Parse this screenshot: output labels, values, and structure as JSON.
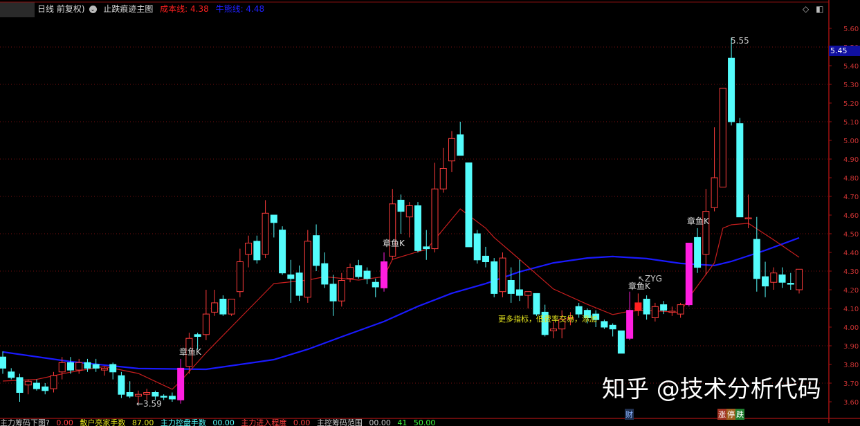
{
  "header": {
    "period": "日线 前复权)",
    "indicator_name": "止跌痕迹主图",
    "cost_line_label": "成本线: 4.38",
    "bull_bear_label": "牛熊线: 4.48",
    "icons": [
      "chevron-down-icon",
      "diamond-icon",
      "panel-toggle-icon"
    ]
  },
  "colors": {
    "up": "#ff3c3c",
    "down": "#54fcfc",
    "special": "#ff1ee0",
    "cost_line": "#c81e1e",
    "bull_bear_line": "#1a1aff",
    "grid": "#7a1010",
    "axis_text": "#c83232"
  },
  "last_price_tag": "5.45",
  "annotations": {
    "low_marker": "←3.59",
    "high_marker": "5.55",
    "zyg": "↖ZYG",
    "octopus_k": "章鱼K",
    "promo": "更多指标，低费率交易，添加"
  },
  "bottom_bar": {
    "items": [
      "主力筹码下图?",
      "0.00",
      "散户亮家手数",
      "87.00",
      "主力控盘手数",
      "00.00",
      "主力进入程度",
      "0.00",
      "主控筹码范围",
      "00.00",
      "41",
      "50.00"
    ],
    "badge_cai": "财",
    "badge_zhang": "涨",
    "badge_ting": "停",
    "badge_die": "跌"
  },
  "watermark": "知乎 @技术分析代码",
  "chart_data": {
    "type": "candlestick",
    "ylim": [
      3.58,
      5.66
    ],
    "yticks": [
      "5.60",
      "5.50",
      "5.40",
      "5.30",
      "5.20",
      "5.10",
      "5.00",
      "4.90",
      "4.80",
      "4.70",
      "4.60",
      "4.50",
      "4.40",
      "4.30",
      "4.20",
      "4.10",
      "4.00",
      "3.90",
      "3.80",
      "3.70",
      "3.60"
    ],
    "grid": true,
    "candles": [
      {
        "o": 3.84,
        "h": 3.87,
        "l": 3.75,
        "c": 3.78
      },
      {
        "o": 3.76,
        "h": 3.78,
        "l": 3.72,
        "c": 3.73
      },
      {
        "o": 3.73,
        "h": 3.75,
        "l": 3.6,
        "c": 3.65
      },
      {
        "o": 3.69,
        "h": 3.72,
        "l": 3.64,
        "c": 3.71
      },
      {
        "o": 3.7,
        "h": 3.72,
        "l": 3.66,
        "c": 3.67
      },
      {
        "o": 3.68,
        "h": 3.7,
        "l": 3.64,
        "c": 3.66
      },
      {
        "o": 3.67,
        "h": 3.76,
        "l": 3.65,
        "c": 3.74
      },
      {
        "o": 3.76,
        "h": 3.84,
        "l": 3.72,
        "c": 3.81
      },
      {
        "o": 3.81,
        "h": 3.84,
        "l": 3.75,
        "c": 3.77
      },
      {
        "o": 3.77,
        "h": 3.83,
        "l": 3.75,
        "c": 3.81
      },
      {
        "o": 3.81,
        "h": 3.83,
        "l": 3.76,
        "c": 3.78
      },
      {
        "o": 3.8,
        "h": 3.83,
        "l": 3.76,
        "c": 3.78
      },
      {
        "o": 3.77,
        "h": 3.79,
        "l": 3.74,
        "c": 3.78
      },
      {
        "o": 3.8,
        "h": 3.81,
        "l": 3.72,
        "c": 3.76
      },
      {
        "o": 3.74,
        "h": 3.76,
        "l": 3.62,
        "c": 3.64
      },
      {
        "o": 3.65,
        "h": 3.71,
        "l": 3.62,
        "c": 3.63
      },
      {
        "o": 3.63,
        "h": 3.66,
        "l": 3.59,
        "c": 3.64
      },
      {
        "o": 3.64,
        "h": 3.67,
        "l": 3.61,
        "c": 3.65
      },
      {
        "o": 3.65,
        "h": 3.66,
        "l": 3.61,
        "c": 3.63
      },
      {
        "o": 3.63,
        "h": 3.64,
        "l": 3.61,
        "c": 3.625
      },
      {
        "o": 3.63,
        "h": 3.65,
        "l": 3.6,
        "c": 3.615
      },
      {
        "o": 3.61,
        "h": 3.83,
        "l": 3.59,
        "c": 3.78
      },
      {
        "o": 3.79,
        "h": 3.97,
        "l": 3.75,
        "c": 3.94
      },
      {
        "o": 3.96,
        "h": 3.97,
        "l": 3.88,
        "c": 3.95
      },
      {
        "o": 3.96,
        "h": 4.2,
        "l": 3.93,
        "c": 4.07
      },
      {
        "o": 4.08,
        "h": 4.2,
        "l": 4.06,
        "c": 4.13
      },
      {
        "o": 4.15,
        "h": 4.17,
        "l": 4.06,
        "c": 4.07
      },
      {
        "o": 4.07,
        "h": 4.15,
        "l": 4.06,
        "c": 4.15
      },
      {
        "o": 4.19,
        "h": 4.42,
        "l": 4.16,
        "c": 4.35
      },
      {
        "o": 4.39,
        "h": 4.49,
        "l": 4.32,
        "c": 4.45
      },
      {
        "o": 4.46,
        "h": 4.49,
        "l": 4.34,
        "c": 4.36
      },
      {
        "o": 4.39,
        "h": 4.68,
        "l": 4.37,
        "c": 4.61
      },
      {
        "o": 4.6,
        "h": 4.6,
        "l": 4.48,
        "c": 4.56
      },
      {
        "o": 4.52,
        "h": 4.54,
        "l": 4.28,
        "c": 4.29
      },
      {
        "o": 4.28,
        "h": 4.36,
        "l": 4.13,
        "c": 4.26
      },
      {
        "o": 4.29,
        "h": 4.33,
        "l": 4.14,
        "c": 4.17
      },
      {
        "o": 4.16,
        "h": 4.52,
        "l": 4.13,
        "c": 4.46
      },
      {
        "o": 4.49,
        "h": 4.55,
        "l": 4.3,
        "c": 4.33
      },
      {
        "o": 4.34,
        "h": 4.4,
        "l": 4.21,
        "c": 4.23
      },
      {
        "o": 4.23,
        "h": 4.28,
        "l": 4.06,
        "c": 4.14
      },
      {
        "o": 4.14,
        "h": 4.29,
        "l": 4.11,
        "c": 4.25
      },
      {
        "o": 4.26,
        "h": 4.34,
        "l": 4.24,
        "c": 4.32
      },
      {
        "o": 4.33,
        "h": 4.36,
        "l": 4.26,
        "c": 4.27
      },
      {
        "o": 4.3,
        "h": 4.32,
        "l": 4.23,
        "c": 4.26
      },
      {
        "o": 4.24,
        "h": 4.26,
        "l": 4.16,
        "c": 4.215
      },
      {
        "o": 4.21,
        "h": 4.4,
        "l": 4.19,
        "c": 4.35
      },
      {
        "o": 4.38,
        "h": 4.74,
        "l": 4.36,
        "c": 4.66
      },
      {
        "o": 4.68,
        "h": 4.71,
        "l": 4.5,
        "c": 4.62
      },
      {
        "o": 4.59,
        "h": 4.67,
        "l": 4.48,
        "c": 4.65
      },
      {
        "o": 4.65,
        "h": 4.67,
        "l": 4.4,
        "c": 4.41
      },
      {
        "o": 4.43,
        "h": 4.52,
        "l": 4.36,
        "c": 4.42
      },
      {
        "o": 4.42,
        "h": 4.88,
        "l": 4.4,
        "c": 4.74
      },
      {
        "o": 4.74,
        "h": 4.96,
        "l": 4.72,
        "c": 4.85
      },
      {
        "o": 4.89,
        "h": 5.05,
        "l": 4.83,
        "c": 5.01
      },
      {
        "o": 5.03,
        "h": 5.1,
        "l": 4.92,
        "c": 4.92
      },
      {
        "o": 4.88,
        "h": 4.88,
        "l": 4.43,
        "c": 4.43
      },
      {
        "o": 4.5,
        "h": 4.52,
        "l": 4.34,
        "c": 4.36
      },
      {
        "o": 4.38,
        "h": 4.43,
        "l": 4.32,
        "c": 4.35
      },
      {
        "o": 4.35,
        "h": 4.37,
        "l": 4.16,
        "c": 4.18
      },
      {
        "o": 4.19,
        "h": 4.4,
        "l": 4.16,
        "c": 4.37
      },
      {
        "o": 4.25,
        "h": 4.32,
        "l": 4.13,
        "c": 4.18
      },
      {
        "o": 4.2,
        "h": 4.36,
        "l": 4.14,
        "c": 4.17
      },
      {
        "o": 4.17,
        "h": 4.19,
        "l": 4.1,
        "c": 4.19
      },
      {
        "o": 4.18,
        "h": 4.18,
        "l": 4.06,
        "c": 4.07
      },
      {
        "o": 4.08,
        "h": 4.12,
        "l": 3.95,
        "c": 3.96
      },
      {
        "o": 3.98,
        "h": 4.03,
        "l": 3.94,
        "c": 3.99
      },
      {
        "o": 3.99,
        "h": 4.09,
        "l": 3.94,
        "c": 4.04
      },
      {
        "o": 4.04,
        "h": 4.08,
        "l": 4.01,
        "c": 4.05
      },
      {
        "o": 4.11,
        "h": 4.13,
        "l": 4.05,
        "c": 4.07
      },
      {
        "o": 4.09,
        "h": 4.1,
        "l": 4.02,
        "c": 4.05
      },
      {
        "o": 4.07,
        "h": 4.09,
        "l": 4.0,
        "c": 4.04
      },
      {
        "o": 4.03,
        "h": 4.04,
        "l": 3.99,
        "c": 4.0
      },
      {
        "o": 4.01,
        "h": 4.02,
        "l": 3.95,
        "c": 3.99
      },
      {
        "o": 3.98,
        "h": 3.98,
        "l": 3.86,
        "c": 3.86
      },
      {
        "o": 3.94,
        "h": 4.19,
        "l": 3.93,
        "c": 4.09
      },
      {
        "o": 4.09,
        "h": 4.18,
        "l": 4.06,
        "c": 4.13,
        "filled": true
      },
      {
        "o": 4.15,
        "h": 4.17,
        "l": 4.04,
        "c": 4.07
      },
      {
        "o": 4.05,
        "h": 4.13,
        "l": 4.03,
        "c": 4.11
      },
      {
        "o": 4.12,
        "h": 4.14,
        "l": 4.07,
        "c": 4.09
      },
      {
        "o": 4.085,
        "h": 4.11,
        "l": 4.06,
        "c": 4.085
      },
      {
        "o": 4.07,
        "h": 4.13,
        "l": 4.05,
        "c": 4.12
      },
      {
        "o": 4.12,
        "h": 4.45,
        "l": 4.11,
        "c": 4.45
      },
      {
        "o": 4.48,
        "h": 4.53,
        "l": 4.29,
        "c": 4.32
      },
      {
        "o": 4.39,
        "h": 4.74,
        "l": 4.28,
        "c": 4.62
      },
      {
        "o": 4.64,
        "h": 5.07,
        "l": 4.62,
        "c": 4.8
      },
      {
        "o": 4.75,
        "h": 5.28,
        "l": 4.75,
        "c": 5.28
      },
      {
        "o": 5.44,
        "h": 5.55,
        "l": 5.08,
        "c": 5.1
      },
      {
        "o": 5.09,
        "h": 5.12,
        "l": 4.59,
        "c": 4.59
      },
      {
        "o": 4.585,
        "h": 4.71,
        "l": 4.53,
        "c": 4.585
      },
      {
        "o": 4.47,
        "h": 4.59,
        "l": 4.19,
        "c": 4.26
      },
      {
        "o": 4.27,
        "h": 4.35,
        "l": 4.16,
        "c": 4.22
      },
      {
        "o": 4.24,
        "h": 4.32,
        "l": 4.2,
        "c": 4.29
      },
      {
        "o": 4.28,
        "h": 4.32,
        "l": 4.21,
        "c": 4.24
      },
      {
        "o": 4.235,
        "h": 4.29,
        "l": 4.2,
        "c": 4.23
      },
      {
        "o": 4.2,
        "h": 4.31,
        "l": 4.18,
        "c": 4.31
      }
    ],
    "special_candles": [
      21,
      45,
      74,
      81
    ],
    "cost_line": [
      [
        0,
        3.711
      ],
      [
        4,
        3.72
      ],
      [
        8,
        3.759
      ],
      [
        12,
        3.789
      ],
      [
        16,
        3.752
      ],
      [
        20,
        3.667
      ],
      [
        21,
        3.711
      ],
      [
        24,
        3.863
      ],
      [
        28,
        4.048
      ],
      [
        32,
        4.233
      ],
      [
        36,
        4.252
      ],
      [
        38,
        4.27
      ],
      [
        42,
        4.252
      ],
      [
        45,
        4.27
      ],
      [
        46,
        4.363
      ],
      [
        49,
        4.404
      ],
      [
        50,
        4.415
      ],
      [
        54,
        4.633
      ],
      [
        57,
        4.53
      ],
      [
        58,
        4.48
      ],
      [
        61,
        4.363
      ],
      [
        65,
        4.204
      ],
      [
        69,
        4.122
      ],
      [
        72,
        4.067
      ],
      [
        74,
        4.085
      ],
      [
        76,
        4.09
      ],
      [
        80,
        4.078
      ],
      [
        81,
        4.159
      ],
      [
        84,
        4.344
      ],
      [
        85,
        4.53
      ],
      [
        86,
        4.548
      ],
      [
        88,
        4.556
      ],
      [
        91,
        4.467
      ],
      [
        94,
        4.374
      ]
    ],
    "bull_bear_line": [
      [
        0,
        3.867
      ],
      [
        8,
        3.815
      ],
      [
        16,
        3.778
      ],
      [
        24,
        3.774
      ],
      [
        32,
        3.826
      ],
      [
        36,
        3.881
      ],
      [
        40,
        3.948
      ],
      [
        45,
        4.03
      ],
      [
        49,
        4.111
      ],
      [
        53,
        4.181
      ],
      [
        57,
        4.233
      ],
      [
        61,
        4.296
      ],
      [
        65,
        4.344
      ],
      [
        69,
        4.37
      ],
      [
        72,
        4.378
      ],
      [
        76,
        4.367
      ],
      [
        80,
        4.341
      ],
      [
        84,
        4.33
      ],
      [
        86,
        4.352
      ],
      [
        90,
        4.411
      ],
      [
        94,
        4.478
      ]
    ]
  }
}
